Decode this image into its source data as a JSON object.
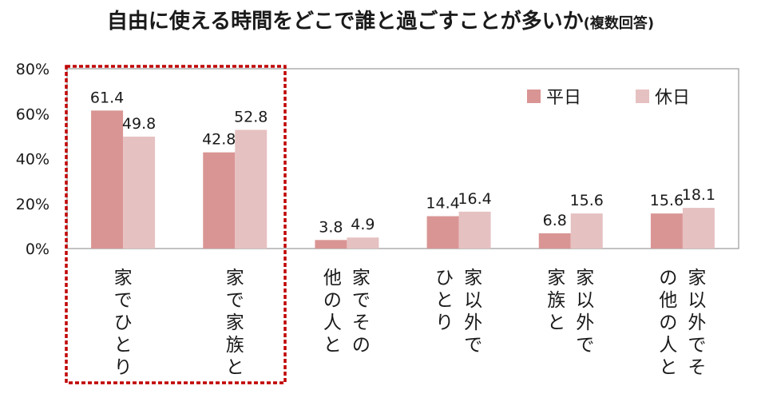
{
  "title": "自由に使える時間をどこで誰と過ごすことが多いか",
  "subtitle": "(複数回答)",
  "chart_data": {
    "type": "bar",
    "categories": [
      [
        "家でひとり"
      ],
      [
        "家で家族と"
      ],
      [
        "家でその",
        "他の人と"
      ],
      [
        "家以外で",
        "ひとり"
      ],
      [
        "家以外で",
        "家族と"
      ],
      [
        "家以外でそ",
        "の他の人と"
      ]
    ],
    "series": [
      {
        "name": "平日",
        "values": [
          61.4,
          42.8,
          3.8,
          14.4,
          6.8,
          15.6
        ],
        "color": "#d99594"
      },
      {
        "name": "休日",
        "values": [
          49.8,
          52.8,
          4.9,
          16.4,
          15.6,
          18.1
        ],
        "color": "#e6c1c1"
      }
    ],
    "y_ticks": [
      "0%",
      "20%",
      "40%",
      "60%",
      "80%"
    ],
    "ylim": [
      0,
      80
    ],
    "legend_position": "top-right",
    "highlight": {
      "categories": [
        0,
        1
      ],
      "style": "dotted-red-box",
      "color": "#c00000"
    },
    "grid": false
  }
}
